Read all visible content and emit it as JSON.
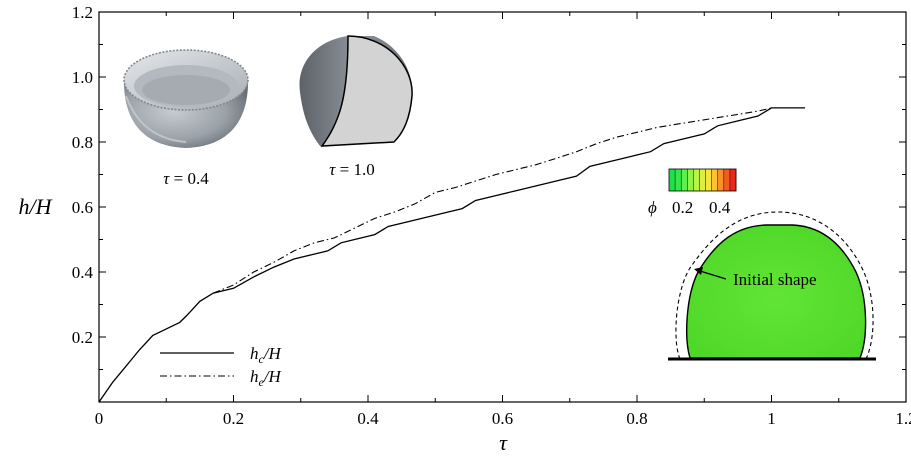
{
  "chart_data": {
    "type": "line",
    "xlabel": "τ",
    "ylabel": "h/H",
    "xlim": [
      0,
      1.2
    ],
    "ylim": [
      0,
      1.2
    ],
    "xticks": [
      0,
      0.2,
      0.4,
      0.6,
      0.8,
      1.0,
      1.2
    ],
    "yticks": [
      0.2,
      0.4,
      0.6,
      0.8,
      1.0,
      1.2
    ],
    "xtick_labels": [
      "0",
      "0.2",
      "0.4",
      "0.6",
      "0.8",
      "1",
      "1.2"
    ],
    "ytick_labels": [
      "0.2",
      "0.4",
      "0.6",
      "0.8",
      "1.0",
      "1.2"
    ],
    "grid": false,
    "legend_position": "bottom-left",
    "series": [
      {
        "name_main": "h",
        "name_sub": "c",
        "name_suffix": "/H",
        "style": "solid",
        "x": [
          0.0,
          0.02,
          0.04,
          0.06,
          0.08,
          0.1,
          0.12,
          0.13,
          0.15,
          0.17,
          0.2,
          0.23,
          0.26,
          0.29,
          0.32,
          0.34,
          0.36,
          0.38,
          0.41,
          0.43,
          0.46,
          0.49,
          0.52,
          0.54,
          0.56,
          0.59,
          0.62,
          0.65,
          0.68,
          0.71,
          0.73,
          0.76,
          0.79,
          0.82,
          0.84,
          0.87,
          0.9,
          0.92,
          0.95,
          0.98,
          1.0,
          1.05
        ],
        "y": [
          0.0,
          0.06,
          0.11,
          0.16,
          0.205,
          0.225,
          0.245,
          0.265,
          0.31,
          0.335,
          0.35,
          0.385,
          0.415,
          0.44,
          0.455,
          0.465,
          0.49,
          0.5,
          0.515,
          0.54,
          0.555,
          0.57,
          0.585,
          0.595,
          0.62,
          0.635,
          0.65,
          0.665,
          0.68,
          0.695,
          0.725,
          0.74,
          0.755,
          0.77,
          0.795,
          0.81,
          0.825,
          0.85,
          0.865,
          0.88,
          0.905,
          0.905
        ]
      },
      {
        "name_main": "h",
        "name_sub": "e",
        "name_suffix": "/H",
        "style": "dashdot",
        "x": [
          0.17,
          0.2,
          0.23,
          0.26,
          0.29,
          0.32,
          0.35,
          0.38,
          0.41,
          0.44,
          0.47,
          0.5,
          0.53,
          0.56,
          0.59,
          0.62,
          0.65,
          0.68,
          0.71,
          0.74,
          0.77,
          0.8,
          0.83,
          0.86,
          0.89,
          0.92,
          0.95,
          0.98,
          1.0
        ],
        "y": [
          0.335,
          0.36,
          0.4,
          0.43,
          0.465,
          0.49,
          0.505,
          0.535,
          0.565,
          0.585,
          0.61,
          0.645,
          0.66,
          0.68,
          0.7,
          0.715,
          0.73,
          0.75,
          0.77,
          0.795,
          0.815,
          0.83,
          0.845,
          0.855,
          0.865,
          0.875,
          0.885,
          0.895,
          0.905
        ]
      }
    ],
    "annotations": {
      "inset1_sym": "τ",
      "inset1_value": " = 0.4",
      "inset2_sym": "τ",
      "inset2_value": " = 1.0",
      "colorbar_sym": "ϕ",
      "colorbar_ticks": [
        "0.2",
        "0.4"
      ],
      "initial_shape_label": "Initial shape"
    }
  },
  "colors": {
    "colorbar": [
      "#1ee048",
      "#33e84a",
      "#5cf04a",
      "#8ef448",
      "#b9f444",
      "#dcef40",
      "#f7e33a",
      "#fcc232",
      "#f99028",
      "#f25a20",
      "#e8281a"
    ],
    "droplet_fill": "#5ae02e",
    "droplet_edge": "#1e9e12",
    "inset_gray": "#9ea4aa",
    "cut_face": "#d3d3d3"
  }
}
